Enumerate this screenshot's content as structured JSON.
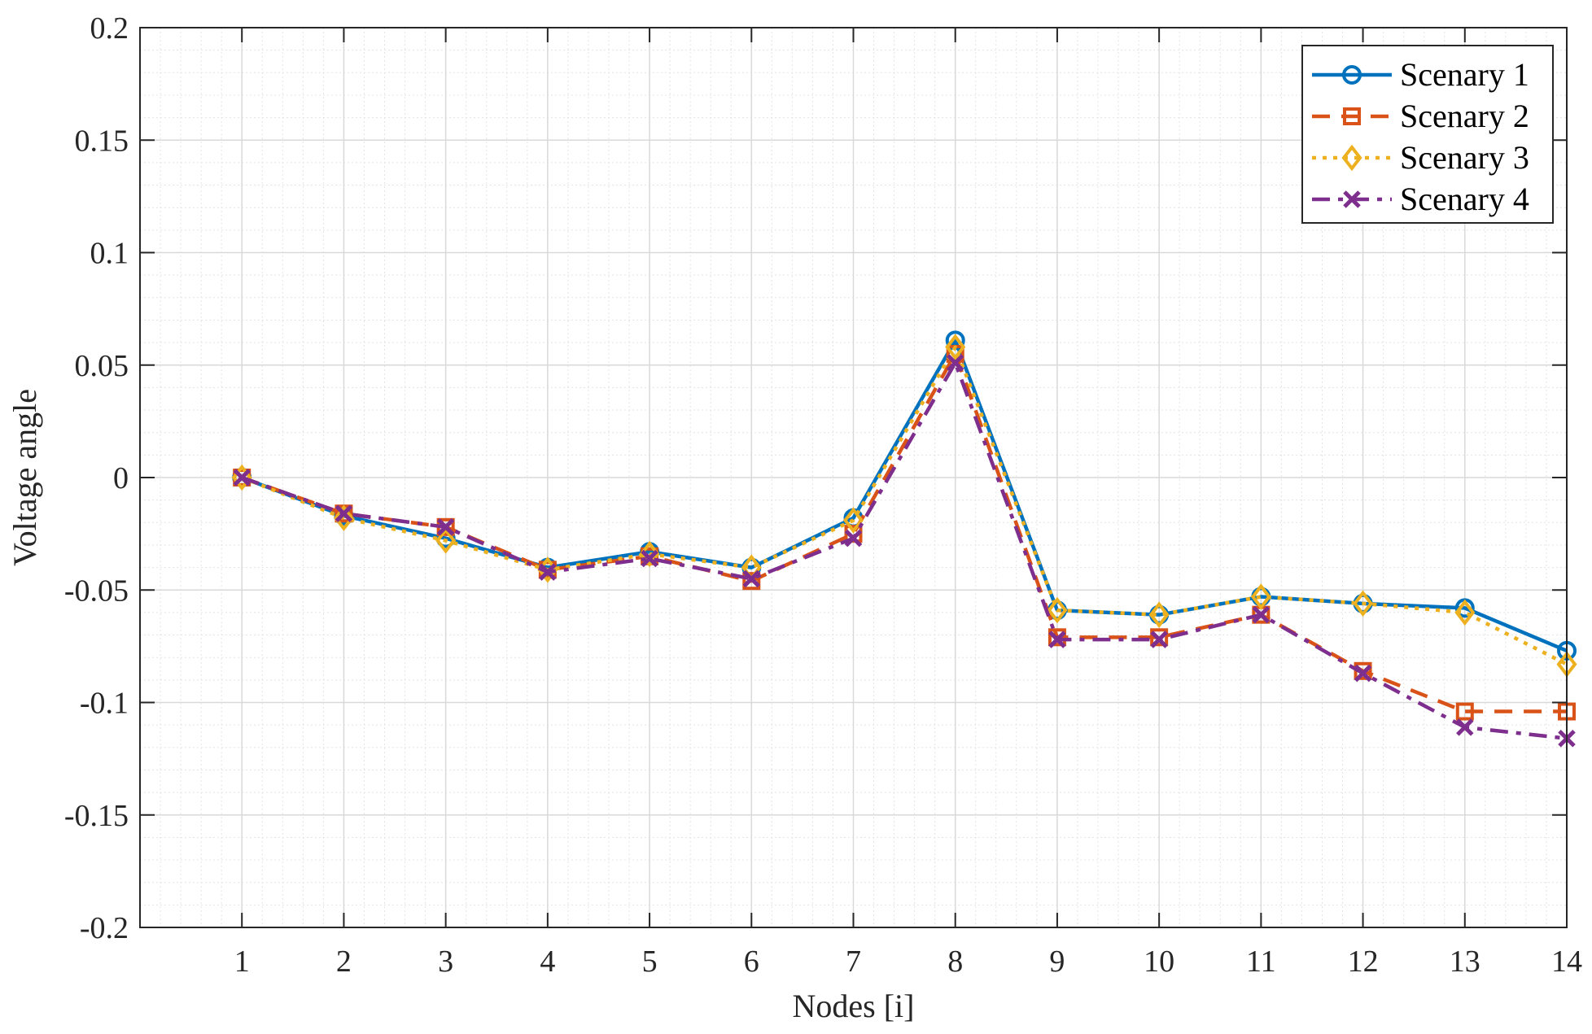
{
  "chart_data": {
    "type": "line",
    "title": "",
    "xlabel": "Nodes [i]",
    "ylabel": "Voltage angle",
    "x": [
      1,
      2,
      3,
      4,
      5,
      6,
      7,
      8,
      9,
      10,
      11,
      12,
      13,
      14
    ],
    "xticks": [
      "1",
      "2",
      "3",
      "4",
      "5",
      "6",
      "7",
      "8",
      "9",
      "10",
      "11",
      "12",
      "13",
      "14"
    ],
    "xlim": [
      0,
      14
    ],
    "ylim": [
      -0.2,
      0.2
    ],
    "yticks": [
      "-0.2",
      "-0.15",
      "-0.1",
      "-0.05",
      "0",
      "0.05",
      "0.1",
      "0.15",
      "0.2"
    ],
    "yticks_values": [
      -0.2,
      -0.15,
      -0.1,
      -0.05,
      0,
      0.05,
      0.1,
      0.15,
      0.2
    ],
    "grid": true,
    "minor_grid": true,
    "legend_position": "upper right",
    "series": [
      {
        "name": "Scenary 1",
        "color": "#0072BD",
        "line_style": "solid",
        "marker": "circle",
        "values": [
          0.0,
          -0.017,
          -0.027,
          -0.04,
          -0.033,
          -0.04,
          -0.018,
          0.061,
          -0.059,
          -0.061,
          -0.053,
          -0.056,
          -0.058,
          -0.077
        ]
      },
      {
        "name": "Scenary 2",
        "color": "#D95319",
        "line_style": "dashed",
        "marker": "square",
        "values": [
          0.0,
          -0.016,
          -0.022,
          -0.041,
          -0.035,
          -0.046,
          -0.025,
          0.055,
          -0.071,
          -0.071,
          -0.061,
          -0.086,
          -0.104,
          -0.104
        ]
      },
      {
        "name": "Scenary 3",
        "color": "#EDB120",
        "line_style": "dotted",
        "marker": "diamond",
        "values": [
          0.0,
          -0.018,
          -0.028,
          -0.041,
          -0.034,
          -0.04,
          -0.019,
          0.058,
          -0.059,
          -0.061,
          -0.053,
          -0.056,
          -0.06,
          -0.083
        ]
      },
      {
        "name": "Scenary 4",
        "color": "#7E2F8E",
        "line_style": "dashdot",
        "marker": "x",
        "values": [
          0.0,
          -0.016,
          -0.022,
          -0.042,
          -0.036,
          -0.045,
          -0.027,
          0.051,
          -0.072,
          -0.072,
          -0.061,
          -0.087,
          -0.111,
          -0.116
        ]
      }
    ]
  }
}
